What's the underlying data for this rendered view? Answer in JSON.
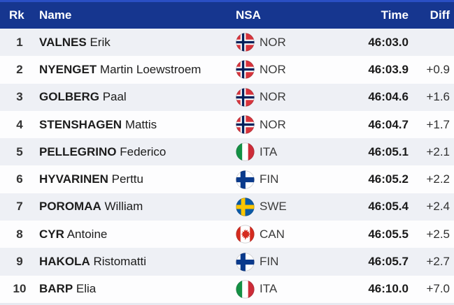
{
  "table": {
    "headers": {
      "rank": "Rk",
      "name": "Name",
      "nsa": "NSA",
      "time": "Time",
      "diff": "Diff"
    },
    "rows": [
      {
        "rank": "1",
        "last": "VALNES",
        "first": "Erik",
        "flag": "NOR",
        "nsa": "NOR",
        "time": "46:03.0",
        "diff": ""
      },
      {
        "rank": "2",
        "last": "NYENGET",
        "first": "Martin Loewstroem",
        "flag": "NOR",
        "nsa": "NOR",
        "time": "46:03.9",
        "diff": "+0.9"
      },
      {
        "rank": "3",
        "last": "GOLBERG",
        "first": "Paal",
        "flag": "NOR",
        "nsa": "NOR",
        "time": "46:04.6",
        "diff": "+1.6"
      },
      {
        "rank": "4",
        "last": "STENSHAGEN",
        "first": "Mattis",
        "flag": "NOR",
        "nsa": "NOR",
        "time": "46:04.7",
        "diff": "+1.7"
      },
      {
        "rank": "5",
        "last": "PELLEGRINO",
        "first": "Federico",
        "flag": "ITA",
        "nsa": "ITA",
        "time": "46:05.1",
        "diff": "+2.1"
      },
      {
        "rank": "6",
        "last": "HYVARINEN",
        "first": "Perttu",
        "flag": "FIN",
        "nsa": "FIN",
        "time": "46:05.2",
        "diff": "+2.2"
      },
      {
        "rank": "7",
        "last": "POROMAA",
        "first": "William",
        "flag": "SWE",
        "nsa": "SWE",
        "time": "46:05.4",
        "diff": "+2.4"
      },
      {
        "rank": "8",
        "last": "CYR",
        "first": "Antoine",
        "flag": "CAN",
        "nsa": "CAN",
        "time": "46:05.5",
        "diff": "+2.5"
      },
      {
        "rank": "9",
        "last": "HAKOLA",
        "first": "Ristomatti",
        "flag": "FIN",
        "nsa": "FIN",
        "time": "46:05.7",
        "diff": "+2.7"
      },
      {
        "rank": "10",
        "last": "BARP",
        "first": "Elia",
        "flag": "ITA",
        "nsa": "ITA",
        "time": "46:10.0",
        "diff": "+7.0"
      }
    ]
  },
  "colors": {
    "header_bg": "#16368f",
    "header_topline": "#2a4fc4",
    "row_odd_bg": "#eef0f5",
    "row_even_bg": "#fdfdfe",
    "flag_nor_red": "#d8343c",
    "flag_navy": "#00205b",
    "flag_fin_blue": "#0a3a8c",
    "flag_swe_blue": "#0a5aa6",
    "flag_swe_yellow": "#fdc600",
    "flag_ita_green": "#149144",
    "flag_ita_red": "#cd2b37",
    "flag_can_red": "#d52b1e"
  }
}
